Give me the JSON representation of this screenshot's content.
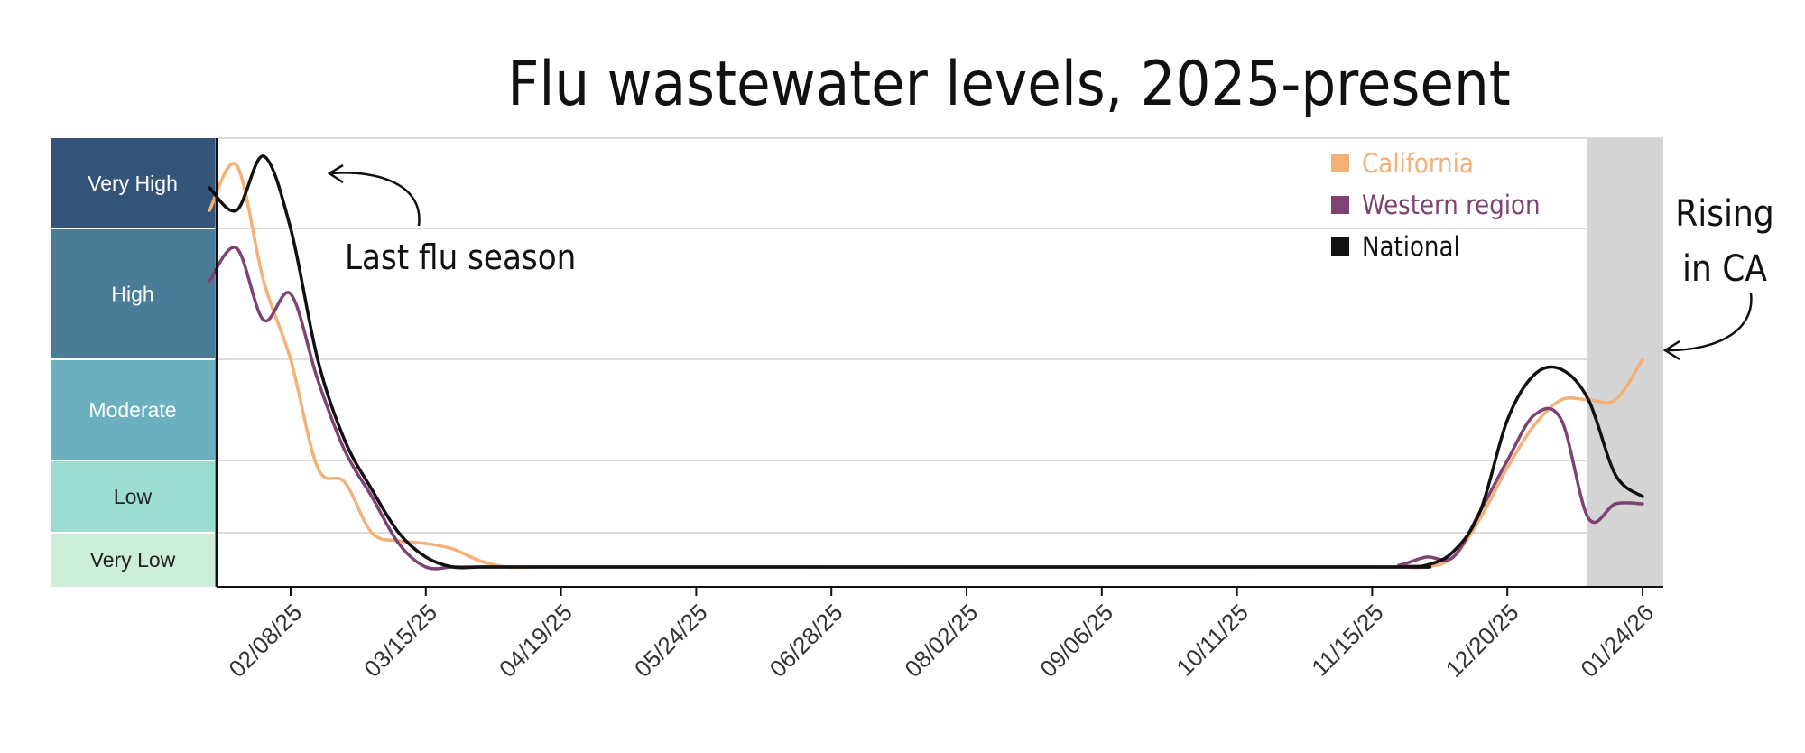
{
  "chart_data": {
    "type": "line",
    "title": "Flu wastewater levels, 2025-present",
    "xlabel": "",
    "ylabel": "",
    "x_ticks": [
      "02/08/25",
      "03/15/25",
      "04/19/25",
      "05/24/25",
      "06/28/25",
      "08/02/25",
      "09/06/25",
      "10/11/25",
      "11/15/25",
      "12/20/25",
      "01/24/26"
    ],
    "levels": [
      {
        "label": "Very High",
        "color": "#355479"
      },
      {
        "label": "High",
        "color": "#4a7c98"
      },
      {
        "label": "Moderate",
        "color": "#6cb0bf"
      },
      {
        "label": "Low",
        "color": "#9ddcd1"
      },
      {
        "label": "Very Low",
        "color": "#cdeedb"
      }
    ],
    "level_scale": "0 = bottom of Very Low band, 5 = top of Very High band",
    "series": [
      {
        "name": "California",
        "color": "#f5b077",
        "x": [
          "01/18/25",
          "01/25/25",
          "02/01/25",
          "02/08/25",
          "02/15/25",
          "02/22/25",
          "03/01/25",
          "03/08/25",
          "03/15/25",
          "03/22/25",
          "03/29/25",
          "04/05/25",
          "04/12/25",
          "04/19/25",
          "04/26/25",
          "05/03/25",
          "05/10/25",
          "05/24/25",
          "11/01/25",
          "11/08/25",
          "11/15/25",
          "11/22/25",
          "11/29/25",
          "12/06/25",
          "12/13/25",
          "12/20/25",
          "12/27/25",
          "01/03/26",
          "01/10/26",
          "01/17/26",
          "01/24/26"
        ],
        "y": [
          4.2,
          4.7,
          3.6,
          3.0,
          1.9,
          1.7,
          1.0,
          0.85,
          0.8,
          0.7,
          0.48,
          0.27,
          0.26,
          0.27,
          0.23,
          0.12,
          0.12,
          0.12,
          0.12,
          0.2,
          0.12,
          0.12,
          0.28,
          0.55,
          1.2,
          1.9,
          2.35,
          2.6,
          2.6,
          2.6,
          3.0
        ]
      },
      {
        "name": "Western region",
        "color": "#7f4273",
        "x": [
          "01/18/25",
          "01/25/25",
          "02/01/25",
          "02/08/25",
          "02/15/25",
          "02/22/25",
          "03/01/25",
          "03/08/25",
          "03/15/25",
          "03/22/25",
          "03/29/25",
          "04/05/25",
          "04/12/25",
          "04/19/25",
          "05/24/25",
          "11/15/25",
          "11/22/25",
          "11/29/25",
          "12/06/25",
          "12/13/25",
          "12/20/25",
          "12/27/25",
          "01/03/26",
          "01/10/26",
          "01/17/26",
          "01/24/26"
        ],
        "y": [
          3.6,
          3.85,
          3.3,
          3.5,
          2.8,
          2.1,
          1.5,
          0.8,
          0.3,
          0.2,
          0.18,
          0.14,
          0.12,
          0.12,
          0.12,
          0.12,
          0.4,
          0.55,
          0.55,
          1.3,
          2.0,
          2.45,
          2.4,
          1.2,
          1.4,
          1.4
        ]
      },
      {
        "name": "National",
        "color": "#111111",
        "x": [
          "01/18/25",
          "01/25/25",
          "02/01/25",
          "02/08/25",
          "02/15/25",
          "02/22/25",
          "03/01/25",
          "03/08/25",
          "03/15/25",
          "03/22/25",
          "03/29/25",
          "04/05/25",
          "04/12/25",
          "05/24/25",
          "11/15/25",
          "11/22/25",
          "11/29/25",
          "12/06/25",
          "12/13/25",
          "12/20/25",
          "12/27/25",
          "01/03/26",
          "01/10/26",
          "01/17/26",
          "01/24/26"
        ],
        "y": [
          4.45,
          4.2,
          4.8,
          4.0,
          3.0,
          2.2,
          1.6,
          1.0,
          0.55,
          0.26,
          0.26,
          0.16,
          0.12,
          0.12,
          0.12,
          0.25,
          0.4,
          0.65,
          1.3,
          2.4,
          2.85,
          2.9,
          2.6,
          1.8,
          1.5
        ]
      }
    ],
    "shaded_region": {
      "from": "01/03/26",
      "to": "01/24/26",
      "color": "#d4d4d4"
    },
    "legend_placement": "top-right",
    "grid": true,
    "annotations": [
      "Last flu season",
      "Rising in CA"
    ]
  }
}
